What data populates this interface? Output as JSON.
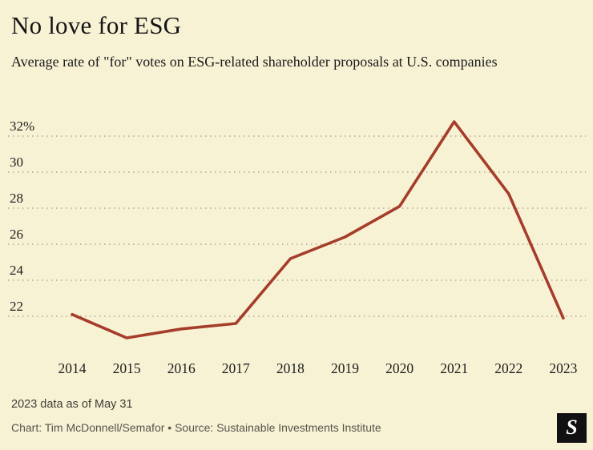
{
  "header": {
    "title": "No love for ESG",
    "subtitle": "Average rate of \"for\" votes on ESG-related shareholder proposals at U.S. companies"
  },
  "chart_data": {
    "type": "line",
    "title": "No love for ESG",
    "subtitle": "Average rate of \"for\" votes on ESG-related shareholder proposals at U.S. companies",
    "categories": [
      "2014",
      "2015",
      "2016",
      "2017",
      "2018",
      "2019",
      "2020",
      "2021",
      "2022",
      "2023"
    ],
    "values": [
      22.1,
      20.8,
      21.3,
      21.6,
      25.2,
      26.4,
      28.1,
      32.8,
      28.8,
      21.9
    ],
    "unit": "%",
    "xlabel": "",
    "ylabel": "",
    "ylim": [
      20,
      33.5
    ],
    "yticks": [
      22,
      24,
      26,
      28,
      30,
      32
    ],
    "ytick_labels": [
      "22",
      "24",
      "26",
      "28",
      "30",
      "32%"
    ],
    "grid": "horizontal-dashed",
    "legend": "none",
    "line_color": "#a63d2b"
  },
  "footer": {
    "note": "2023 data as of May 31",
    "credit": "Chart: Tim McDonnell/Semafor • Source: Sustainable Investments Institute",
    "logo_letter": "S"
  },
  "colors": {
    "background": "#f8f2d5",
    "line": "#a63d2b",
    "gridline": "#8a8a7b",
    "text": "#161616",
    "footer_text": "#55554a",
    "logo_background": "#111111"
  }
}
